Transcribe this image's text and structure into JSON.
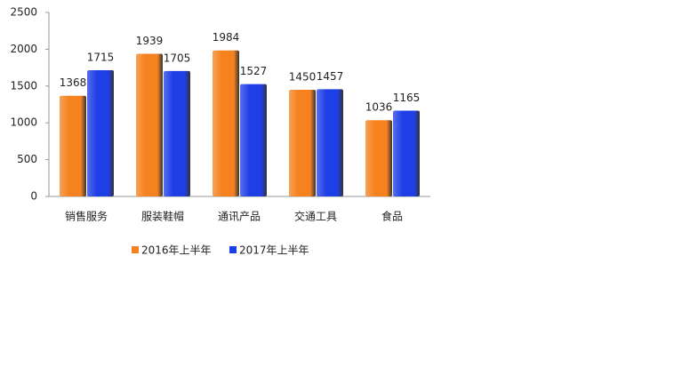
{
  "chart_data": {
    "type": "bar",
    "categories": [
      "销售服务",
      "服装鞋帽",
      "通讯产品",
      "交通工具",
      "食品"
    ],
    "series": [
      {
        "name": "2016年上半年",
        "color": "#f5821f",
        "values": [
          1368,
          1939,
          1984,
          1450,
          1036
        ]
      },
      {
        "name": "2017年上半年",
        "color": "#1f3fe6",
        "values": [
          1715,
          1705,
          1527,
          1457,
          1165
        ]
      }
    ],
    "ylim": [
      0,
      2500
    ],
    "yticks": [
      0,
      500,
      1000,
      1500,
      2000,
      2500
    ],
    "grid": false,
    "legend": "bottom"
  }
}
